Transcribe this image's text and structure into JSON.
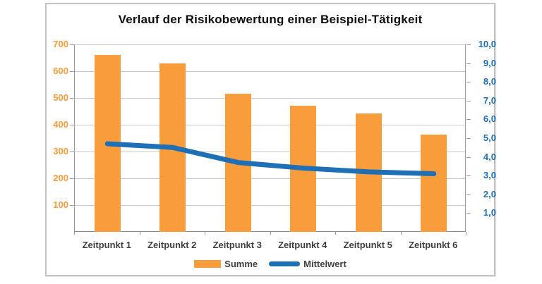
{
  "chart_data": {
    "type": "bar",
    "subtype": "combo-bar-line",
    "title": "Verlauf der Risikobewertung einer Beispiel-Tätigkeit",
    "categories": [
      "Zeitpunkt 1",
      "Zeitpunkt 2",
      "Zeitpunkt 3",
      "Zeitpunkt 4",
      "Zeitpunkt 5",
      "Zeitpunkt 6"
    ],
    "series": [
      {
        "name": "Summe",
        "type": "bar",
        "axis": "left",
        "color": "#F89C3C",
        "values": [
          660,
          630,
          515,
          470,
          443,
          362
        ]
      },
      {
        "name": "Mittelwert",
        "type": "line",
        "axis": "right",
        "color": "#1E6FB5",
        "values": [
          4.7,
          4.5,
          3.7,
          3.4,
          3.2,
          3.1
        ]
      }
    ],
    "left_axis": {
      "min": 0,
      "max": 700,
      "ticks": [
        100,
        200,
        300,
        400,
        500,
        600,
        700
      ],
      "tick_labels": [
        "100",
        "200",
        "300",
        "400",
        "500",
        "600",
        "700"
      ],
      "label_color": "#F89C3C"
    },
    "right_axis": {
      "min": 0,
      "max": 10,
      "ticks": [
        1,
        2,
        3,
        4,
        5,
        6,
        7,
        8,
        9,
        10
      ],
      "tick_labels": [
        "1,0",
        "2,0",
        "3,0",
        "4,0",
        "5,0",
        "6,0",
        "7,0",
        "8,0",
        "9,0",
        "10,0"
      ],
      "label_color": "#1E6FB5"
    },
    "grid": true,
    "gridline_color": "#c9c9c9",
    "legend_position": "bottom",
    "legend": [
      {
        "label": "Summe",
        "marker": "bar-swatch",
        "color": "#F89C3C"
      },
      {
        "label": "Mittelwert",
        "marker": "line-swatch",
        "color": "#1E6FB5"
      }
    ]
  }
}
